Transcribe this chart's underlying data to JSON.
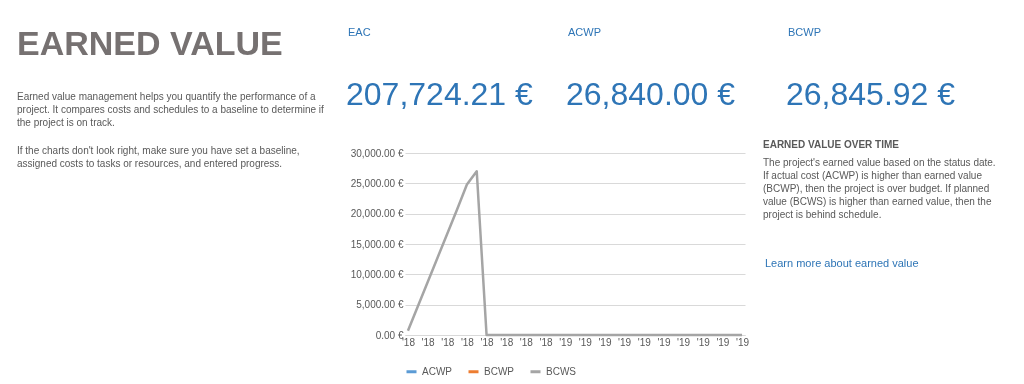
{
  "chart_data": {
    "type": "line",
    "title": "EARNED VALUE",
    "categories": [
      "'18",
      null,
      "'18",
      null,
      "'18",
      null,
      "'18",
      null,
      "'18",
      null,
      "'18",
      null,
      "'18",
      null,
      "'18",
      null,
      "'19",
      null,
      "'19",
      null,
      "'19",
      null,
      "'19",
      null,
      "'19",
      null,
      "'19",
      null,
      "'19",
      null,
      "'19",
      null,
      "'19",
      null,
      "'19"
    ],
    "ylim": [
      0,
      30000
    ],
    "yticks": [
      {
        "value": 0,
        "label": "0.00 €"
      },
      {
        "value": 5000,
        "label": "5,000.00 €"
      },
      {
        "value": 10000,
        "label": "10,000.00 €"
      },
      {
        "value": 15000,
        "label": "15,000.00 €"
      },
      {
        "value": 20000,
        "label": "20,000.00 €"
      },
      {
        "value": 25000,
        "label": "25,000.00 €"
      },
      {
        "value": 30000,
        "label": "30,000.00 €"
      }
    ],
    "series": [
      {
        "name": "ACWP",
        "color": "#5b9bd5",
        "values": [
          null,
          null,
          null,
          null,
          null,
          null,
          null,
          null,
          null,
          null,
          null,
          null,
          null,
          null,
          null,
          null,
          null,
          null,
          null,
          null,
          null,
          null,
          null,
          null,
          null,
          null,
          null,
          null,
          null,
          null,
          null,
          null,
          null,
          null,
          null
        ]
      },
      {
        "name": "BCWP",
        "color": "#ed7d31",
        "values": [
          null,
          null,
          null,
          null,
          null,
          null,
          null,
          null,
          null,
          null,
          null,
          null,
          null,
          null,
          null,
          null,
          null,
          null,
          null,
          null,
          null,
          null,
          null,
          null,
          null,
          null,
          null,
          null,
          null,
          null,
          null,
          null,
          null,
          null,
          null
        ]
      },
      {
        "name": "BCWS",
        "color": "#a5a5a5",
        "values": [
          700,
          4700,
          8700,
          12700,
          16700,
          20700,
          24800,
          27000,
          0,
          0,
          0,
          0,
          0,
          0,
          0,
          0,
          0,
          0,
          0,
          0,
          0,
          0,
          0,
          0,
          0,
          0,
          0,
          0,
          0,
          0,
          0,
          0,
          0,
          0,
          0
        ]
      }
    ],
    "grid": "y",
    "legend": "bottom",
    "line_style": "solid",
    "annotations": [
      "Earned value management helps you quantify the performance of a project. It compares costs and schedules to a baseline to determine if the project is on track.",
      "If the charts don't look right, make sure you have set a baseline, assigned costs to tasks or resources, and entered progress.",
      "EAC",
      "207,724.21 €",
      "ACWP",
      "26,840.00 €",
      "BCWP",
      "26,845.92 €",
      "EARNED VALUE OVER TIME",
      "The project's earned value based on the status date.  If actual cost (ACWP) is higher than earned value (BCWP), then the project is over budget.  If planned value (BCWS) is higher than earned value, then the project is behind schedule.",
      "Learn more about earned value"
    ]
  }
}
